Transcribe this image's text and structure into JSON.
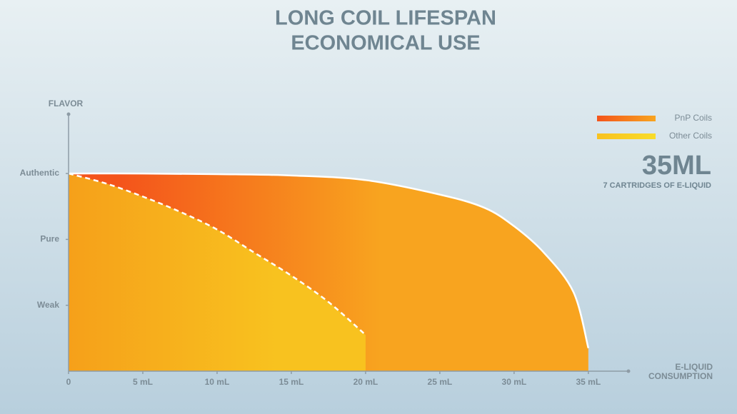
{
  "chart_data": {
    "type": "area",
    "title": "LONG COIL LIFESPAN",
    "subtitle": "ECONOMICAL USE",
    "ylabel": "FLAVOR",
    "xlabel": [
      "E-LIQUID",
      "CONSUMPTION"
    ],
    "annotations": [
      "35ML",
      "7 CARTRIDGES OF E-LIQUID"
    ],
    "xlim": [
      0,
      37.7
    ],
    "ylim": [
      0,
      3.9
    ],
    "xticks": [
      0,
      {
        "value": 5,
        "label": "5 mL"
      },
      {
        "value": 10,
        "label": "10 mL"
      },
      {
        "value": 15,
        "label": "15 mL"
      },
      {
        "value": 20,
        "label": "20 mL"
      },
      {
        "value": 25,
        "label": "25 mL"
      },
      {
        "value": 30,
        "label": "30 mL"
      },
      {
        "value": 35,
        "label": "35 mL"
      }
    ],
    "yticks": [
      {
        "value": 1,
        "label": "Weak"
      },
      {
        "value": 2,
        "label": "Pure"
      },
      {
        "value": 3,
        "label": "Authentic"
      }
    ],
    "series": [
      {
        "name": "PnP Coils",
        "color": "#f4541b",
        "x": [
          0,
          5,
          10,
          15,
          20,
          25,
          28,
          30,
          32,
          34,
          35
        ],
        "values": [
          3,
          3,
          2.99,
          2.97,
          2.9,
          2.68,
          2.48,
          2.2,
          1.8,
          1.2,
          0.35
        ]
      },
      {
        "name": "Other Coils",
        "color": "#f8c21f",
        "x": [
          0,
          2.5,
          5,
          7.5,
          10,
          12.5,
          15,
          17.5,
          20
        ],
        "values": [
          3,
          2.85,
          2.65,
          2.42,
          2.15,
          1.8,
          1.45,
          1.05,
          0.55
        ]
      }
    ]
  }
}
